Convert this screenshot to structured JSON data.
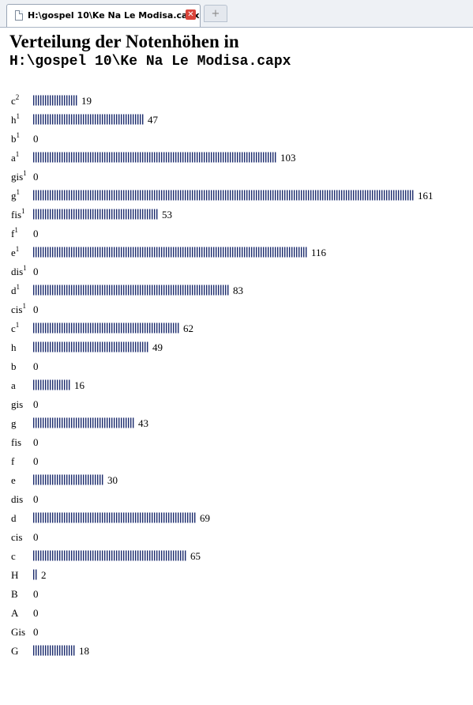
{
  "tab": {
    "title": "H:\\gospel 10\\Ke Na Le Modisa.capx",
    "close_icon": "close-icon",
    "new_tab_icon": "plus-icon"
  },
  "page": {
    "title": "Verteilung der Notenhöhen in",
    "subtitle": "H:\\gospel 10\\Ke Na Le Modisa.capx"
  },
  "colors": {
    "bar": "#1a2a6c",
    "tab_close": "#d9443a"
  },
  "chart_data": {
    "type": "bar",
    "orientation": "horizontal",
    "categories": [
      {
        "base": "c",
        "sup": "2"
      },
      {
        "base": "h",
        "sup": "1"
      },
      {
        "base": "b",
        "sup": "1"
      },
      {
        "base": "a",
        "sup": "1"
      },
      {
        "base": "gis",
        "sup": "1"
      },
      {
        "base": "g",
        "sup": "1"
      },
      {
        "base": "fis",
        "sup": "1"
      },
      {
        "base": "f",
        "sup": "1"
      },
      {
        "base": "e",
        "sup": "1"
      },
      {
        "base": "dis",
        "sup": "1"
      },
      {
        "base": "d",
        "sup": "1"
      },
      {
        "base": "cis",
        "sup": "1"
      },
      {
        "base": "c",
        "sup": "1"
      },
      {
        "base": "h",
        "sup": ""
      },
      {
        "base": "b",
        "sup": ""
      },
      {
        "base": "a",
        "sup": ""
      },
      {
        "base": "gis",
        "sup": ""
      },
      {
        "base": "g",
        "sup": ""
      },
      {
        "base": "fis",
        "sup": ""
      },
      {
        "base": "f",
        "sup": ""
      },
      {
        "base": "e",
        "sup": ""
      },
      {
        "base": "dis",
        "sup": ""
      },
      {
        "base": "d",
        "sup": ""
      },
      {
        "base": "cis",
        "sup": ""
      },
      {
        "base": "c",
        "sup": ""
      },
      {
        "base": "H",
        "sup": ""
      },
      {
        "base": "B",
        "sup": ""
      },
      {
        "base": "A",
        "sup": ""
      },
      {
        "base": "Gis",
        "sup": ""
      },
      {
        "base": "G",
        "sup": ""
      }
    ],
    "values": [
      19,
      47,
      0,
      103,
      0,
      161,
      53,
      0,
      116,
      0,
      83,
      0,
      62,
      49,
      0,
      16,
      0,
      43,
      0,
      0,
      30,
      0,
      69,
      0,
      65,
      2,
      0,
      0,
      0,
      18
    ]
  }
}
